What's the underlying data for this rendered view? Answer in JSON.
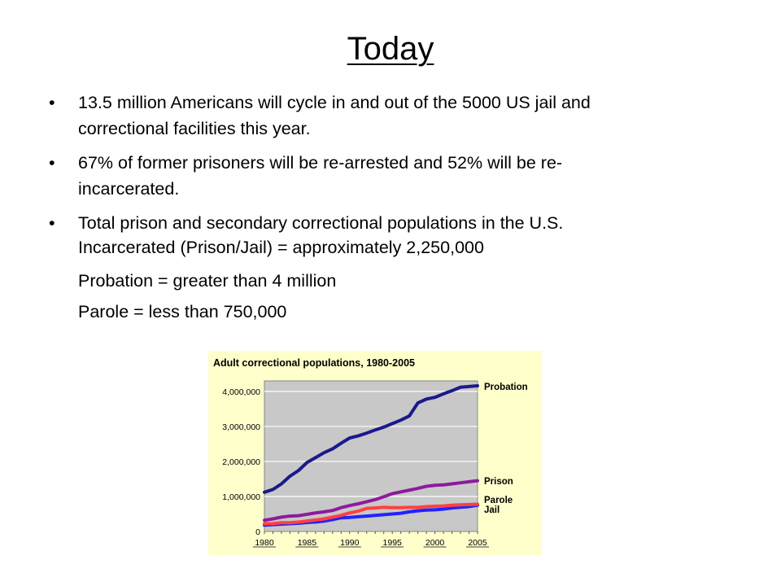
{
  "slide": {
    "title": "Today",
    "bullets": [
      {
        "line1": "13.5 million Americans will cycle in and out of the 5000 US jail and",
        "line2": "correctional facilities this year."
      },
      {
        "line1": "67% of former prisoners will be re-arrested and 52% will be re-",
        "line2": "incarcerated."
      },
      {
        "line1": "Total prison and secondary correctional populations in the U.S.",
        "line2": ""
      }
    ],
    "sub_items": [
      "Incarcerated (Prison/Jail) =  approximately 2,250,000",
      "Probation = greater than 4 million",
      "Parole = less than 750,000"
    ]
  },
  "chart_data": {
    "type": "line",
    "title": "Adult correctional populations, 1980-2005",
    "xlabel": "",
    "ylabel": "",
    "x_ticks": [
      "1980",
      "1985",
      "1990",
      "1995",
      "2000",
      "2005"
    ],
    "y_ticks": [
      "0",
      "1,000,000",
      "2,000,000",
      "3,000,000",
      "4,000,000"
    ],
    "ylim": [
      0,
      4300000
    ],
    "xlim": [
      1980,
      2005
    ],
    "grid": true,
    "legend": "labels at right end of each line",
    "x": [
      1980,
      1981,
      1982,
      1983,
      1984,
      1985,
      1986,
      1987,
      1988,
      1989,
      1990,
      1991,
      1992,
      1993,
      1994,
      1995,
      1996,
      1997,
      1998,
      1999,
      2000,
      2001,
      2002,
      2003,
      2004,
      2005
    ],
    "series": [
      {
        "name": "Probation",
        "color": "#1a1a8c",
        "values": [
          1120000,
          1200000,
          1360000,
          1580000,
          1740000,
          1970000,
          2110000,
          2250000,
          2360000,
          2520000,
          2670000,
          2730000,
          2810000,
          2900000,
          2980000,
          3080000,
          3180000,
          3300000,
          3670000,
          3780000,
          3830000,
          3930000,
          4020000,
          4120000,
          4140000,
          4160000
        ]
      },
      {
        "name": "Prison",
        "color": "#8e1a9e",
        "values": [
          320000,
          360000,
          410000,
          440000,
          450000,
          490000,
          530000,
          560000,
          600000,
          680000,
          740000,
          790000,
          850000,
          910000,
          990000,
          1080000,
          1130000,
          1180000,
          1230000,
          1290000,
          1320000,
          1330000,
          1360000,
          1390000,
          1420000,
          1450000
        ]
      },
      {
        "name": "Parole",
        "color": "#ff4040",
        "values": [
          220000,
          225000,
          250000,
          250000,
          270000,
          300000,
          330000,
          360000,
          410000,
          460000,
          530000,
          580000,
          660000,
          670000,
          690000,
          680000,
          680000,
          690000,
          690000,
          710000,
          720000,
          730000,
          750000,
          760000,
          770000,
          780000
        ]
      },
      {
        "name": "Jail",
        "color": "#2222ff",
        "values": [
          180000,
          195000,
          210000,
          220000,
          235000,
          255000,
          270000,
          295000,
          340000,
          390000,
          400000,
          420000,
          440000,
          460000,
          480000,
          500000,
          520000,
          560000,
          590000,
          610000,
          620000,
          640000,
          670000,
          690000,
          710000,
          750000
        ]
      }
    ]
  }
}
